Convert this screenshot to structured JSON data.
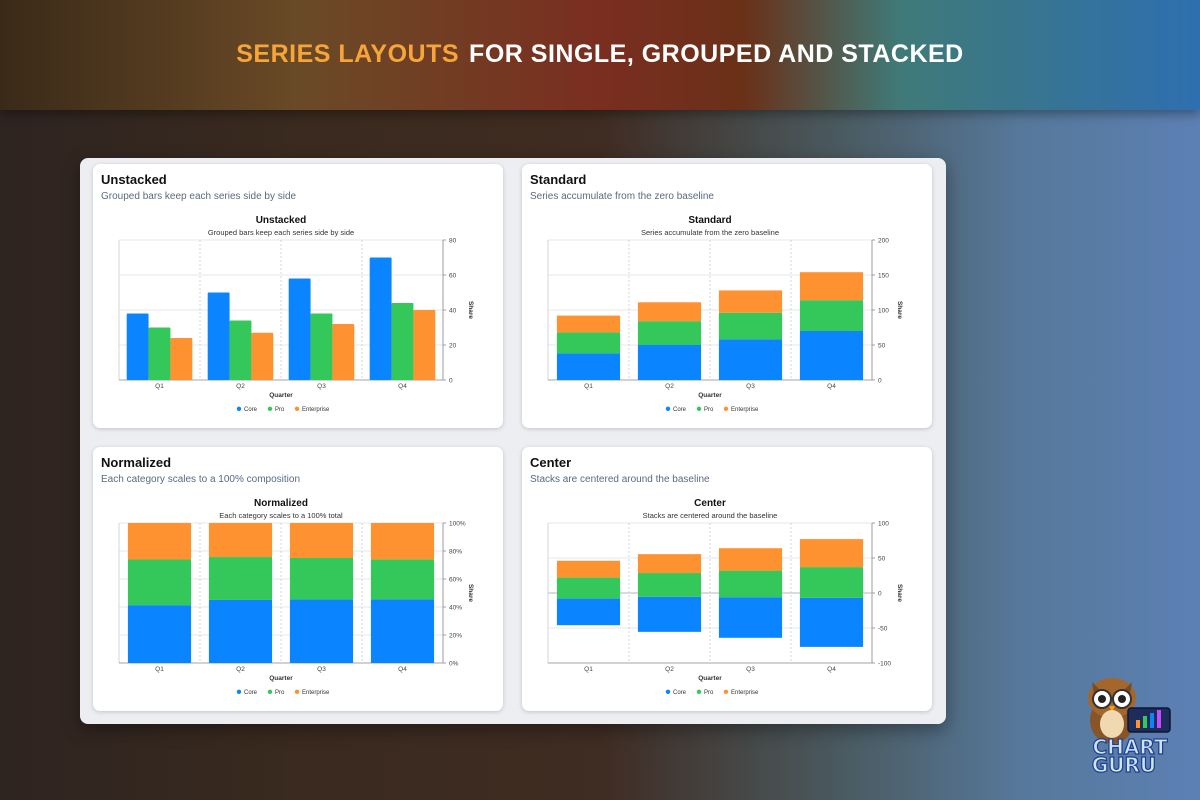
{
  "header": {
    "title_accent": "SERIES LAYOUTS",
    "title_rest": "FOR SINGLE, GROUPED AND STACKED"
  },
  "logo": {
    "line1": "CHART",
    "line2": "GURU",
    "icon": "owl-mascot-icon"
  },
  "colors": {
    "Core": "#0a84ff",
    "Pro": "#34c759",
    "Enterprise": "#ff9230"
  },
  "cards": [
    {
      "title": "Unstacked",
      "subtitle": "Grouped bars keep each series side by side"
    },
    {
      "title": "Standard",
      "subtitle": "Series accumulate from the zero baseline"
    },
    {
      "title": "Normalized",
      "subtitle": "Each category scales to a 100% composition"
    },
    {
      "title": "Center",
      "subtitle": "Stacks are centered around the baseline"
    }
  ],
  "chart_data": [
    {
      "type": "bar",
      "layout": "grouped",
      "title": "Unstacked",
      "subtitle": "Grouped bars keep each series side by side",
      "xlabel": "Quarter",
      "ylabel": "Share",
      "categories": [
        "Q1",
        "Q2",
        "Q3",
        "Q4"
      ],
      "series": [
        {
          "name": "Core",
          "values": [
            38,
            50,
            58,
            70
          ]
        },
        {
          "name": "Pro",
          "values": [
            30,
            34,
            38,
            44
          ]
        },
        {
          "name": "Enterprise",
          "values": [
            24,
            27,
            32,
            40
          ]
        }
      ],
      "ylim": [
        0,
        80
      ],
      "yticks": [
        "0",
        "20",
        "40",
        "60",
        "80"
      ],
      "y_axis_side": "right",
      "grid": true,
      "legend": "bottom-center"
    },
    {
      "type": "bar",
      "layout": "stacked",
      "title": "Standard",
      "subtitle": "Series accumulate from the zero baseline",
      "xlabel": "Quarter",
      "ylabel": "Share",
      "categories": [
        "Q1",
        "Q2",
        "Q3",
        "Q4"
      ],
      "series": [
        {
          "name": "Core",
          "values": [
            38,
            50,
            58,
            70
          ]
        },
        {
          "name": "Pro",
          "values": [
            30,
            34,
            38,
            44
          ]
        },
        {
          "name": "Enterprise",
          "values": [
            24,
            27,
            32,
            40
          ]
        }
      ],
      "ylim": [
        0,
        200
      ],
      "yticks": [
        "0",
        "50",
        "100",
        "150",
        "200"
      ],
      "y_axis_side": "right",
      "grid": true,
      "legend": "bottom-center"
    },
    {
      "type": "bar",
      "layout": "normalized",
      "title": "Normalized",
      "subtitle": "Each category scales to a 100% total",
      "xlabel": "Quarter",
      "ylabel": "Share",
      "categories": [
        "Q1",
        "Q2",
        "Q3",
        "Q4"
      ],
      "series": [
        {
          "name": "Core",
          "values": [
            38,
            50,
            58,
            70
          ]
        },
        {
          "name": "Pro",
          "values": [
            30,
            34,
            38,
            44
          ]
        },
        {
          "name": "Enterprise",
          "values": [
            24,
            27,
            32,
            40
          ]
        }
      ],
      "ylim": [
        0,
        100
      ],
      "yticks": [
        "0%",
        "20%",
        "40%",
        "60%",
        "80%",
        "100%"
      ],
      "y_axis_side": "right",
      "grid": true,
      "legend": "bottom-center"
    },
    {
      "type": "bar",
      "layout": "center",
      "title": "Center",
      "subtitle": "Stacks are centered around the baseline",
      "xlabel": "Quarter",
      "ylabel": "Share",
      "categories": [
        "Q1",
        "Q2",
        "Q3",
        "Q4"
      ],
      "series": [
        {
          "name": "Core",
          "values": [
            38,
            50,
            58,
            70
          ]
        },
        {
          "name": "Pro",
          "values": [
            30,
            34,
            38,
            44
          ]
        },
        {
          "name": "Enterprise",
          "values": [
            24,
            27,
            32,
            40
          ]
        }
      ],
      "ylim": [
        -100,
        100
      ],
      "yticks": [
        "-100",
        "-50",
        "0",
        "50",
        "100"
      ],
      "y_axis_side": "right",
      "grid": true,
      "legend": "bottom-center"
    }
  ]
}
